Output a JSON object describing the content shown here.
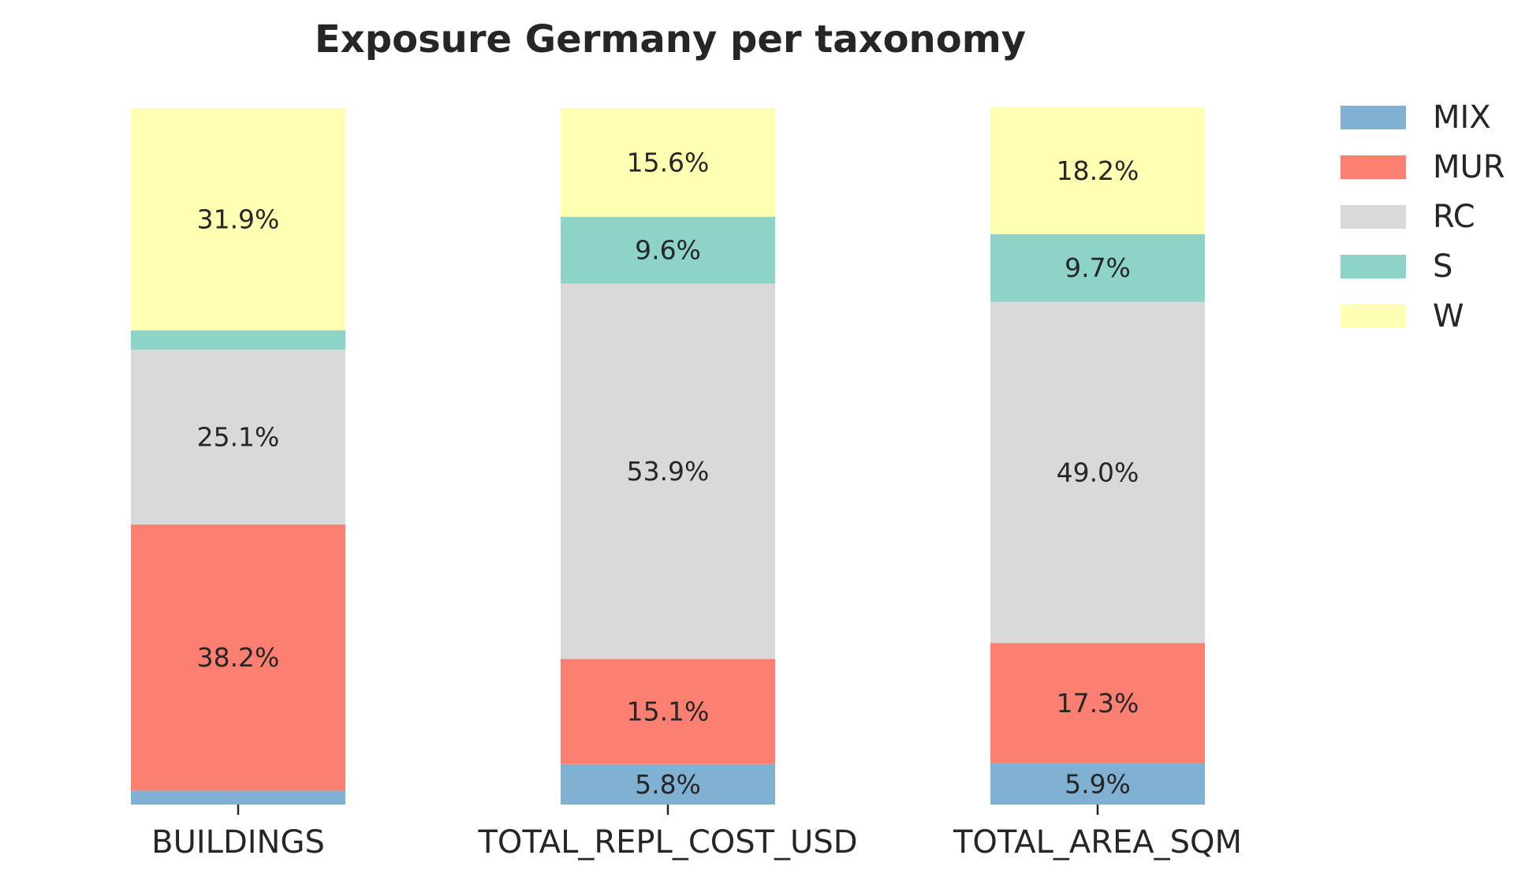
{
  "chart_data": {
    "type": "bar",
    "stacked": true,
    "percent": true,
    "title": "Exposure Germany per taxonomy",
    "xlabel": "",
    "ylabel": "",
    "ylim": [
      0,
      100
    ],
    "grid": false,
    "legend_position": "top-right",
    "categories": [
      "BUILDINGS",
      "TOTAL_REPL_COST_USD",
      "TOTAL_AREA_SQM"
    ],
    "series": [
      {
        "name": "MIX",
        "color": "#80b1d3",
        "values": [
          2.0,
          5.8,
          5.9
        ],
        "labels": [
          "",
          "5.8%",
          "5.9%"
        ]
      },
      {
        "name": "MUR",
        "color": "#fb8072",
        "values": [
          38.2,
          15.1,
          17.3
        ],
        "labels": [
          "38.2%",
          "15.1%",
          "17.3%"
        ]
      },
      {
        "name": "RC",
        "color": "#d9d9d9",
        "values": [
          25.1,
          53.9,
          49.0
        ],
        "labels": [
          "25.1%",
          "53.9%",
          "49.0%"
        ]
      },
      {
        "name": "S",
        "color": "#8dd3c7",
        "values": [
          2.8,
          9.6,
          9.7
        ],
        "labels": [
          "",
          "9.6%",
          "9.7%"
        ]
      },
      {
        "name": "W",
        "color": "#ffffb3",
        "values": [
          31.9,
          15.6,
          18.2
        ],
        "labels": [
          "31.9%",
          "15.6%",
          "18.2%"
        ]
      }
    ]
  }
}
